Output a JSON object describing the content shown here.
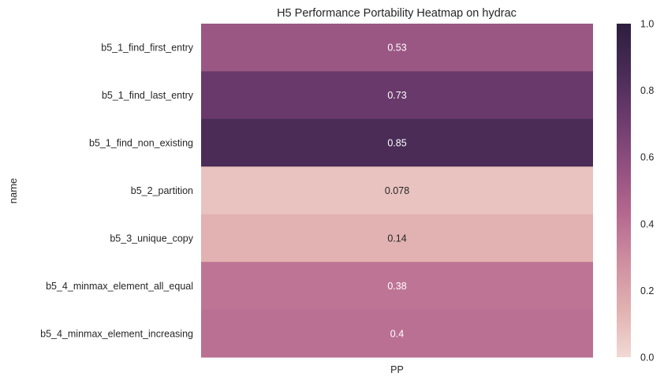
{
  "chart_data": {
    "type": "heatmap",
    "title": "H5 Performance Portability Heatmap on hydrac",
    "xlabel": "",
    "ylabel": "name",
    "x_categories": [
      "PP"
    ],
    "y_categories": [
      "b5_1_find_first_entry",
      "b5_1_find_last_entry",
      "b5_1_find_non_existing",
      "b5_2_partition",
      "b5_3_unique_copy",
      "b5_4_minmax_element_all_equal",
      "b5_4_minmax_element_increasing"
    ],
    "values": [
      0.53,
      0.73,
      0.85,
      0.078,
      0.14,
      0.38,
      0.4
    ],
    "value_labels": [
      "0.53",
      "0.73",
      "0.85",
      "0.078",
      "0.14",
      "0.38",
      "0.4"
    ],
    "colorbar": {
      "range": [
        0.0,
        1.0
      ],
      "ticks": [
        0.0,
        0.2,
        0.4,
        0.6,
        0.8,
        1.0
      ],
      "tick_labels": [
        "0.0",
        "0.2",
        "0.4",
        "0.6",
        "0.8",
        "1.0"
      ]
    },
    "colors": {
      "colormap": [
        "#f1d9d4",
        "#e1b1b0",
        "#ce8fa1",
        "#b5688f",
        "#915080",
        "#6c3b6d",
        "#482b56",
        "#2d1e3e"
      ],
      "light_text": "#ffffff",
      "dark_text": "#262626"
    },
    "grid": false,
    "legend": "colorbar-right"
  }
}
